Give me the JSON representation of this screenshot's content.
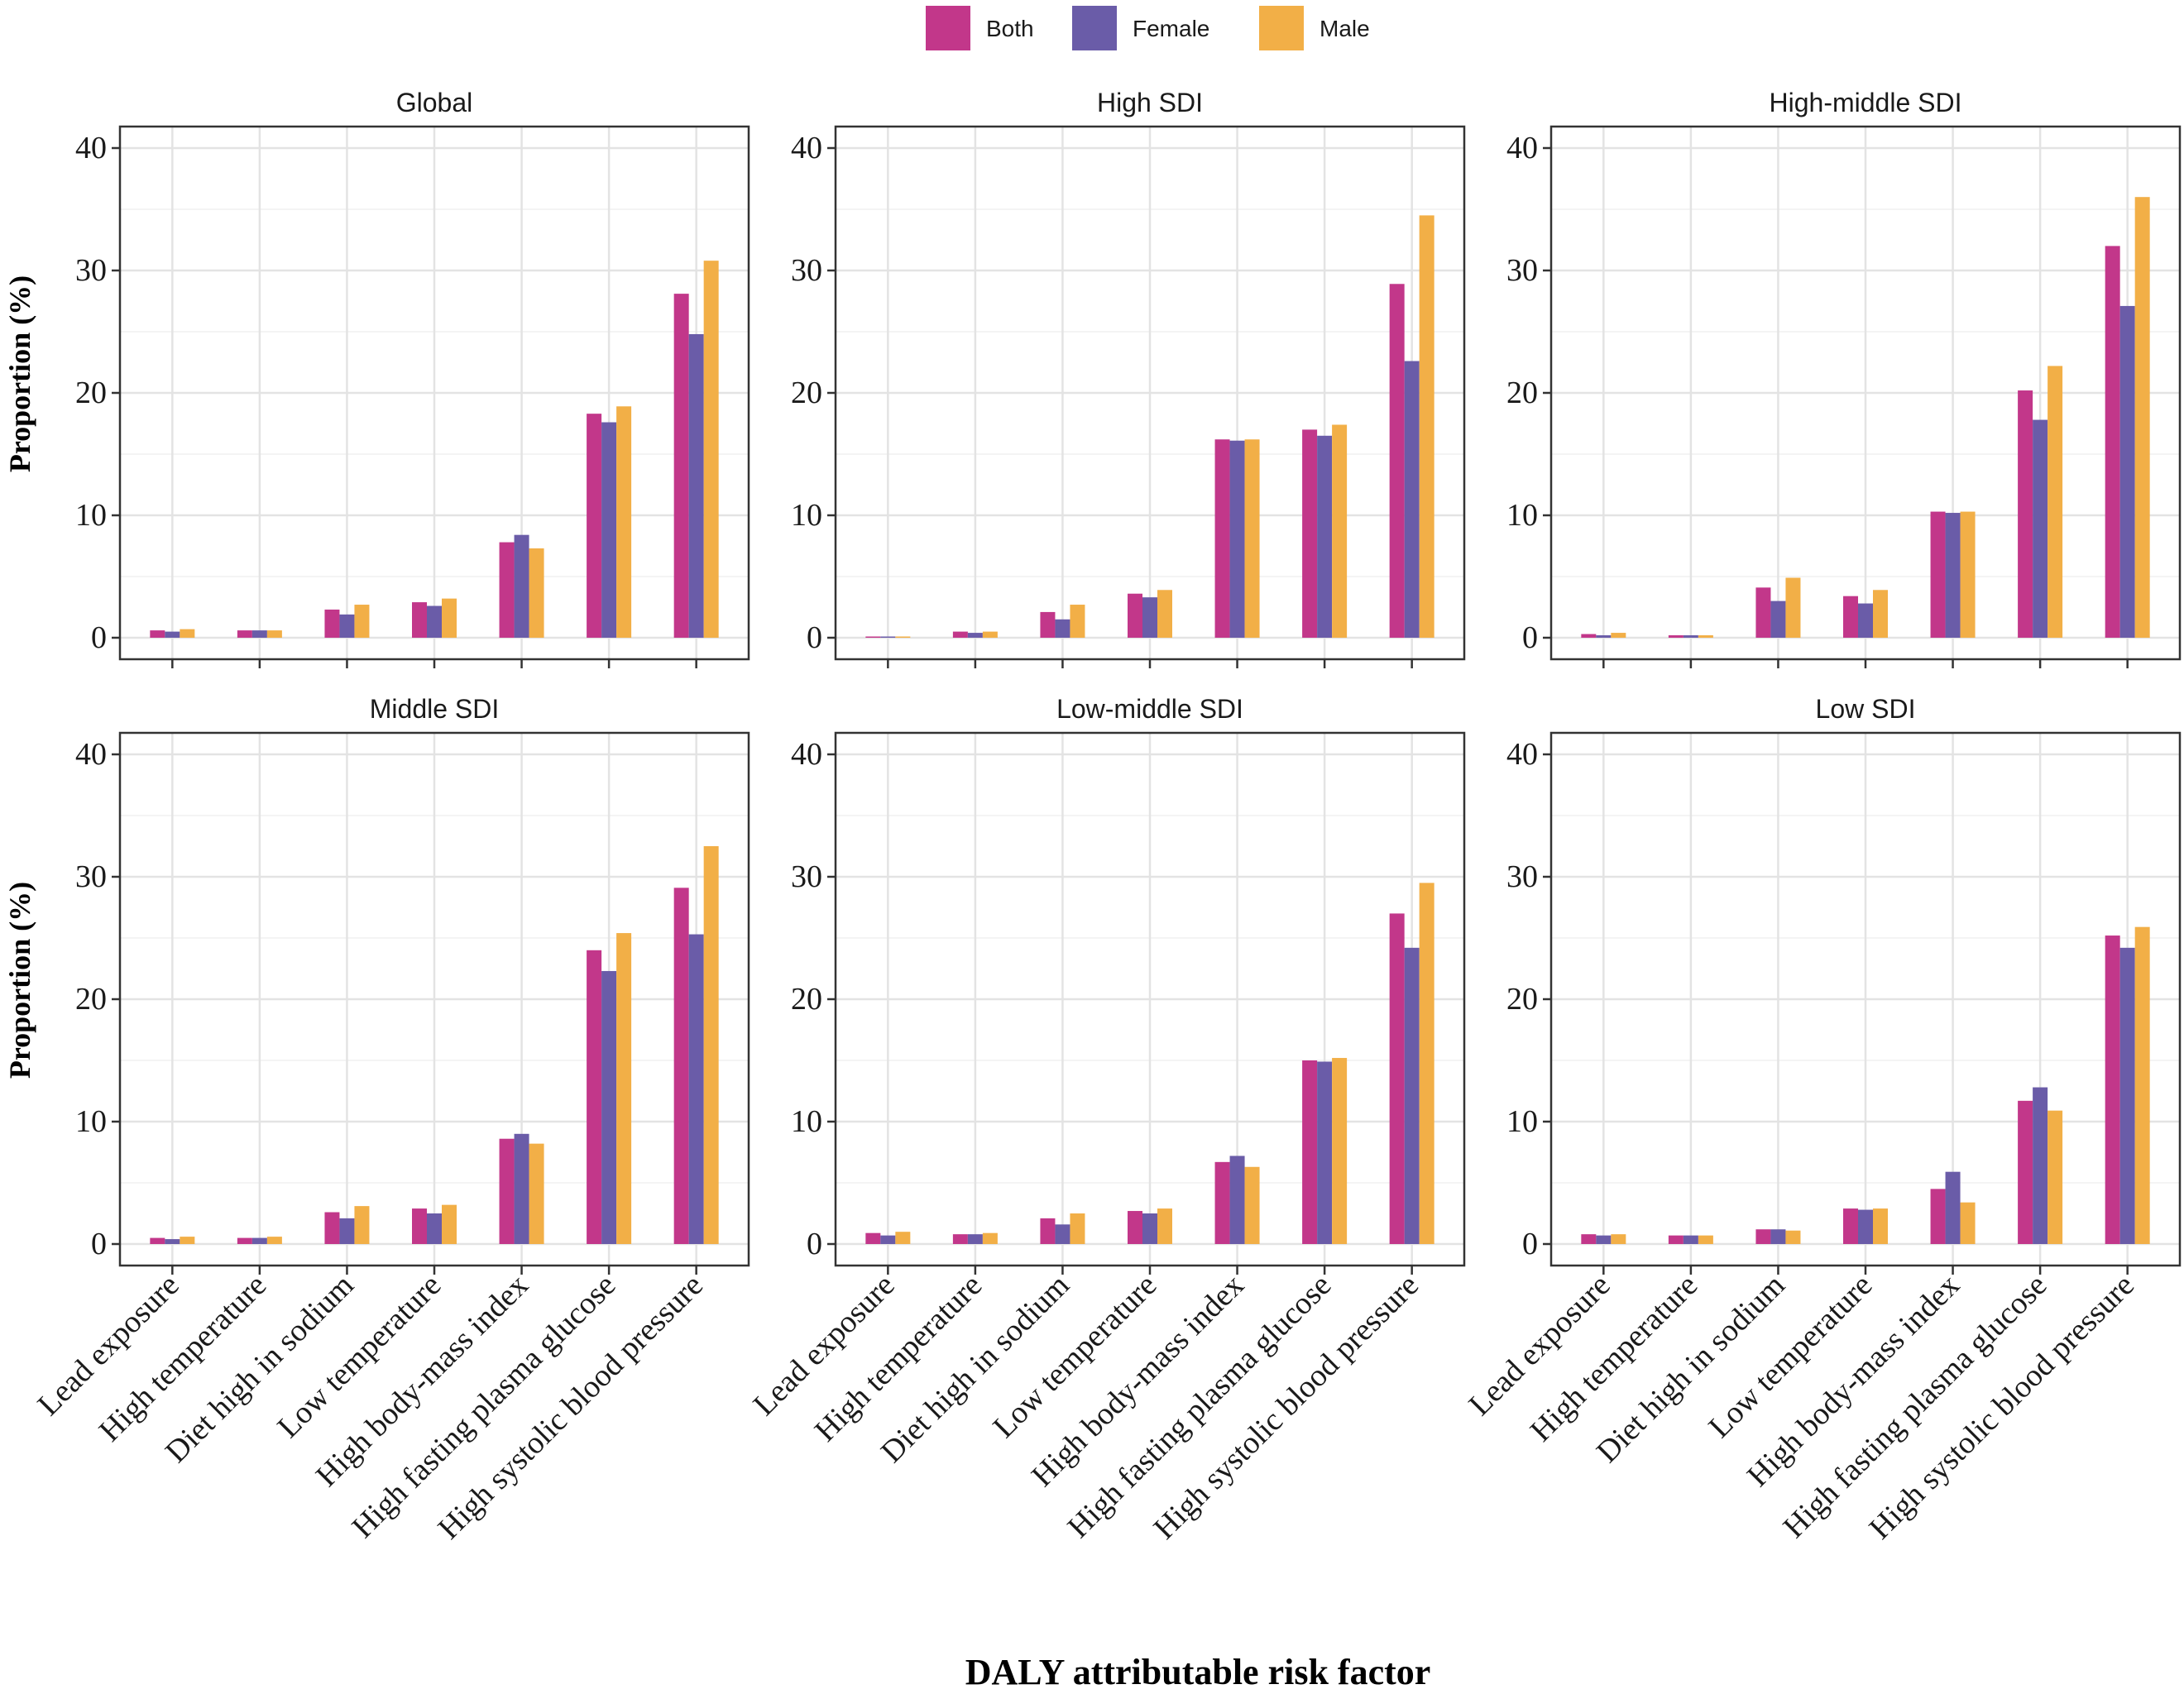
{
  "figure": {
    "xlabel": "DALY attributable risk factor",
    "ylabel": "Proportion (%)"
  },
  "legend": {
    "position": "top-center",
    "items": [
      {
        "label": "Both",
        "color": "#C2378A"
      },
      {
        "label": "Female",
        "color": "#6A5CA8"
      },
      {
        "label": "Male",
        "color": "#F2AF47"
      }
    ]
  },
  "chart_data": [
    {
      "type": "bar",
      "title": "Global",
      "categories": [
        "Lead exposure",
        "High temperature",
        "Diet high in sodium",
        "Low temperature",
        "High body-mass index",
        "High fasting plasma glucose",
        "High systolic blood pressure"
      ],
      "series": [
        {
          "name": "Both",
          "values": [
            0.6,
            0.6,
            2.3,
            2.9,
            7.8,
            18.3,
            28.1
          ]
        },
        {
          "name": "Female",
          "values": [
            0.5,
            0.6,
            1.9,
            2.6,
            8.4,
            17.6,
            24.8
          ]
        },
        {
          "name": "Male",
          "values": [
            0.7,
            0.6,
            2.7,
            3.2,
            7.3,
            18.9,
            30.8
          ]
        }
      ],
      "xlabel": "DALY attributable risk factor",
      "ylabel": "Proportion (%)",
      "ylim": [
        0,
        40
      ],
      "yticks": [
        0,
        10,
        20,
        30,
        40
      ]
    },
    {
      "type": "bar",
      "title": "High SDI",
      "categories": [
        "Lead exposure",
        "High temperature",
        "Diet high in sodium",
        "Low temperature",
        "High body-mass index",
        "High fasting plasma glucose",
        "High systolic blood pressure"
      ],
      "series": [
        {
          "name": "Both",
          "values": [
            0.1,
            0.5,
            2.1,
            3.6,
            16.2,
            17.0,
            28.9
          ]
        },
        {
          "name": "Female",
          "values": [
            0.1,
            0.4,
            1.5,
            3.3,
            16.1,
            16.5,
            22.6
          ]
        },
        {
          "name": "Male",
          "values": [
            0.1,
            0.5,
            2.7,
            3.9,
            16.2,
            17.4,
            34.5
          ]
        }
      ],
      "xlabel": "DALY attributable risk factor",
      "ylabel": "Proportion (%)",
      "ylim": [
        0,
        40
      ],
      "yticks": [
        0,
        10,
        20,
        30,
        40
      ]
    },
    {
      "type": "bar",
      "title": "High-middle SDI",
      "categories": [
        "Lead exposure",
        "High temperature",
        "Diet high in sodium",
        "Low temperature",
        "High body-mass index",
        "High fasting plasma glucose",
        "High systolic blood pressure"
      ],
      "series": [
        {
          "name": "Both",
          "values": [
            0.3,
            0.2,
            4.1,
            3.4,
            10.3,
            20.2,
            32.0
          ]
        },
        {
          "name": "Female",
          "values": [
            0.2,
            0.2,
            3.0,
            2.8,
            10.2,
            17.8,
            27.1
          ]
        },
        {
          "name": "Male",
          "values": [
            0.4,
            0.2,
            4.9,
            3.9,
            10.3,
            22.2,
            36.0
          ]
        }
      ],
      "xlabel": "DALY attributable risk factor",
      "ylabel": "Proportion (%)",
      "ylim": [
        0,
        40
      ],
      "yticks": [
        0,
        10,
        20,
        30,
        40
      ]
    },
    {
      "type": "bar",
      "title": "Middle SDI",
      "categories": [
        "Lead exposure",
        "High temperature",
        "Diet high in sodium",
        "Low temperature",
        "High body-mass index",
        "High fasting plasma glucose",
        "High systolic blood pressure"
      ],
      "series": [
        {
          "name": "Both",
          "values": [
            0.5,
            0.5,
            2.6,
            2.9,
            8.6,
            24.0,
            29.1
          ]
        },
        {
          "name": "Female",
          "values": [
            0.4,
            0.5,
            2.1,
            2.5,
            9.0,
            22.3,
            25.3
          ]
        },
        {
          "name": "Male",
          "values": [
            0.6,
            0.6,
            3.1,
            3.2,
            8.2,
            25.4,
            32.5
          ]
        }
      ],
      "xlabel": "DALY attributable risk factor",
      "ylabel": "Proportion (%)",
      "ylim": [
        0,
        40
      ],
      "yticks": [
        0,
        10,
        20,
        30,
        40
      ]
    },
    {
      "type": "bar",
      "title": "Low-middle SDI",
      "categories": [
        "Lead exposure",
        "High temperature",
        "Diet high in sodium",
        "Low temperature",
        "High body-mass index",
        "High fasting plasma glucose",
        "High systolic blood pressure"
      ],
      "series": [
        {
          "name": "Both",
          "values": [
            0.9,
            0.8,
            2.1,
            2.7,
            6.7,
            15.0,
            27.0
          ]
        },
        {
          "name": "Female",
          "values": [
            0.7,
            0.8,
            1.6,
            2.5,
            7.2,
            14.9,
            24.2
          ]
        },
        {
          "name": "Male",
          "values": [
            1.0,
            0.9,
            2.5,
            2.9,
            6.3,
            15.2,
            29.5
          ]
        }
      ],
      "xlabel": "DALY attributable risk factor",
      "ylabel": "Proportion (%)",
      "ylim": [
        0,
        40
      ],
      "yticks": [
        0,
        10,
        20,
        30,
        40
      ]
    },
    {
      "type": "bar",
      "title": "Low SDI",
      "categories": [
        "Lead exposure",
        "High temperature",
        "Diet high in sodium",
        "Low temperature",
        "High body-mass index",
        "High fasting plasma glucose",
        "High systolic blood pressure"
      ],
      "series": [
        {
          "name": "Both",
          "values": [
            0.8,
            0.7,
            1.2,
            2.9,
            4.5,
            11.7,
            25.2
          ]
        },
        {
          "name": "Female",
          "values": [
            0.7,
            0.7,
            1.2,
            2.8,
            5.9,
            12.8,
            24.2
          ]
        },
        {
          "name": "Male",
          "values": [
            0.8,
            0.7,
            1.1,
            2.9,
            3.4,
            10.9,
            25.9
          ]
        }
      ],
      "xlabel": "DALY attributable risk factor",
      "ylabel": "Proportion (%)",
      "ylim": [
        0,
        40
      ],
      "yticks": [
        0,
        10,
        20,
        30,
        40
      ]
    }
  ]
}
